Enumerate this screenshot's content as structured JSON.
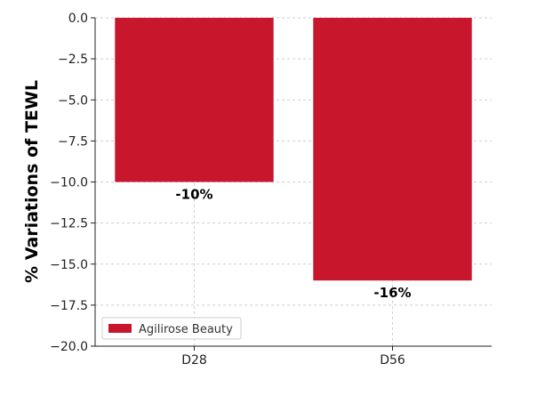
{
  "chart_data": {
    "type": "bar",
    "title": "",
    "xlabel": "",
    "ylabel": "% Variations of TEWL",
    "categories": [
      "D28",
      "D56"
    ],
    "series": [
      {
        "name": "Agilirose Beauty",
        "values": [
          -10,
          -16
        ],
        "color": "#c8172d"
      }
    ],
    "data_labels": [
      "-10%",
      "-16%"
    ],
    "ylim": [
      -20,
      0
    ],
    "yticks": [
      0,
      -2.5,
      -5,
      -7.5,
      -10,
      -12.5,
      -15,
      -17.5,
      -20
    ],
    "ytick_labels": [
      "0.0",
      "−2.5",
      "−5.0",
      "−7.5",
      "−10.0",
      "−12.5",
      "−15.0",
      "−17.5",
      "−20.0"
    ],
    "grid": true,
    "legend_position": "bottom-left"
  }
}
